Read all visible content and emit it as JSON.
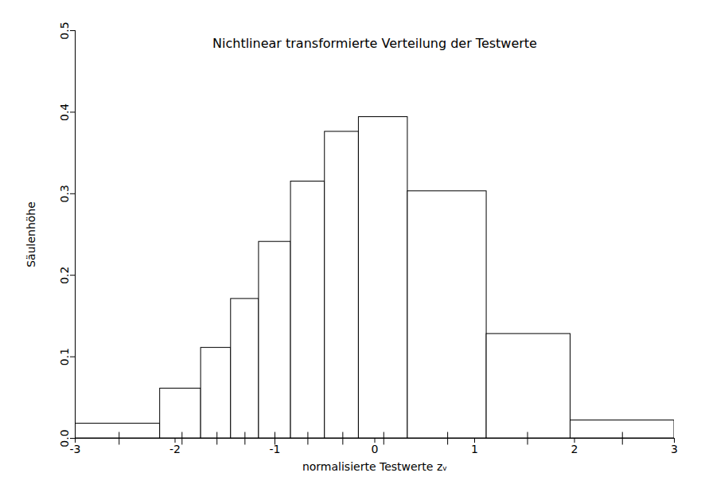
{
  "chart_data": {
    "type": "histogram",
    "title": "Nichtlinear transformierte Verteilung der Testwerte",
    "x_label": "normalisierte Testwerte zᵥ",
    "y_label": "Säulenhöhe",
    "bins": [
      -3.0,
      -2.15,
      -1.74,
      -1.44,
      -1.16,
      -0.84,
      -0.5,
      -0.16,
      0.33,
      1.12,
      1.96,
      3.0
    ],
    "values": [
      0.018,
      0.061,
      0.111,
      0.171,
      0.241,
      0.315,
      0.376,
      0.394,
      0.303,
      0.128,
      0.022
    ],
    "z_marks": [
      -2.56,
      -1.93,
      -1.58,
      -1.3,
      -1.0,
      -0.67,
      -0.32,
      0.09,
      0.73,
      1.53,
      2.48
    ],
    "color": "#ffffff",
    "xlim": [
      -3,
      3
    ],
    "xticks": [
      -3,
      -2,
      -1,
      0,
      1,
      2,
      3
    ],
    "ylim": [
      0,
      0.5
    ],
    "yticks": [
      {
        "value": 0,
        "label": "0.0"
      },
      {
        "value": 0.1,
        "label": "0.1"
      },
      {
        "value": 0.2,
        "label": "0.2"
      },
      {
        "value": 0.3,
        "label": "0.3"
      },
      {
        "value": 0.4,
        "label": "0.4"
      },
      {
        "value": 0.5,
        "label": "0.5"
      }
    ],
    "grid": false
  }
}
